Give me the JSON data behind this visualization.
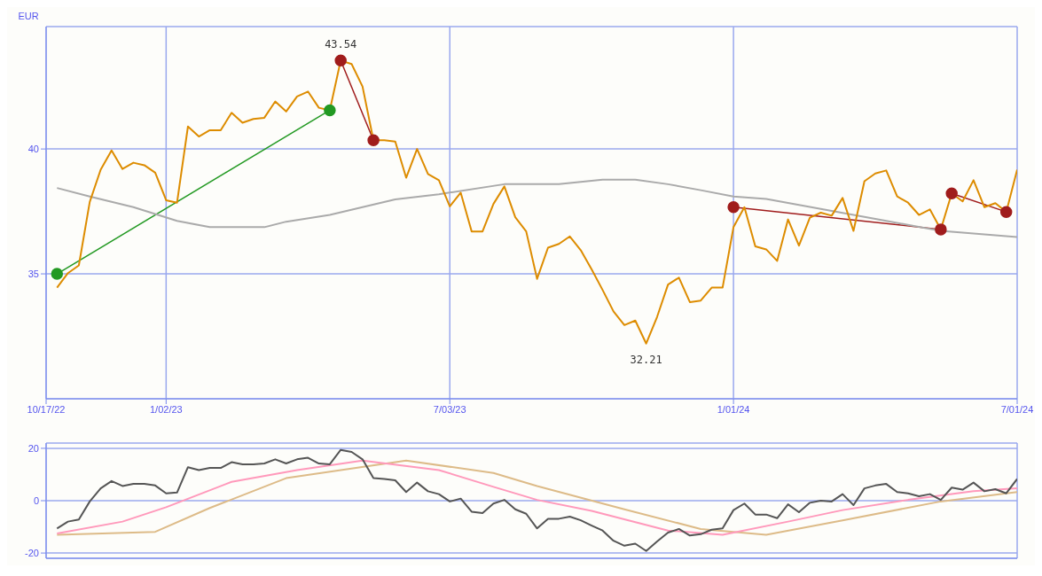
{
  "chart_data": [
    {
      "type": "line",
      "ylabel": "EUR",
      "x": [
        "2022-10-24",
        "2022-10-31",
        "2022-11-07",
        "2022-11-14",
        "2022-11-21",
        "2022-11-28",
        "2022-12-05",
        "2022-12-12",
        "2022-12-19",
        "2022-12-26",
        "2023-01-02",
        "2023-01-09",
        "2023-01-16",
        "2023-01-23",
        "2023-01-30",
        "2023-02-06",
        "2023-02-13",
        "2023-02-20",
        "2023-02-27",
        "2023-03-06",
        "2023-03-13",
        "2023-03-20",
        "2023-03-27",
        "2023-04-03",
        "2023-04-10",
        "2023-04-17",
        "2023-04-24",
        "2023-05-01",
        "2023-05-08",
        "2023-05-15",
        "2023-05-22",
        "2023-05-29",
        "2023-06-05",
        "2023-06-12",
        "2023-06-19",
        "2023-06-26",
        "2023-07-03",
        "2023-07-10",
        "2023-07-17",
        "2023-07-24",
        "2023-07-31",
        "2023-08-07",
        "2023-08-14",
        "2023-08-21",
        "2023-08-28",
        "2023-09-04",
        "2023-09-11",
        "2023-09-18",
        "2023-09-25",
        "2023-10-02",
        "2023-10-09",
        "2023-10-16",
        "2023-10-23",
        "2023-10-30",
        "2023-11-06",
        "2023-11-13",
        "2023-11-20",
        "2023-11-27",
        "2023-12-04",
        "2023-12-11",
        "2023-12-18",
        "2023-12-25",
        "2024-01-01",
        "2024-01-08",
        "2024-01-15",
        "2024-01-22",
        "2024-01-29",
        "2024-02-05",
        "2024-02-12",
        "2024-02-19",
        "2024-02-26",
        "2024-03-04",
        "2024-03-11",
        "2024-03-18",
        "2024-03-25",
        "2024-04-01",
        "2024-04-08",
        "2024-04-15",
        "2024-04-22",
        "2024-04-29",
        "2024-05-06",
        "2024-05-13",
        "2024-05-20",
        "2024-05-27",
        "2024-06-03",
        "2024-06-10",
        "2024-06-17",
        "2024-06-24",
        "2024-07-01"
      ],
      "series": [
        {
          "color": "#dd8c00",
          "values": [
            34.45,
            35.03,
            35.34,
            37.88,
            39.17,
            39.94,
            39.2,
            39.45,
            39.35,
            39.05,
            37.95,
            37.85,
            40.9,
            40.5,
            40.75,
            40.75,
            41.45,
            41.05,
            41.2,
            41.25,
            41.9,
            41.5,
            42.1,
            42.3,
            41.65,
            41.55,
            43.54,
            43.4,
            42.5,
            40.35,
            40.35,
            40.3,
            38.85,
            40.0,
            39.0,
            38.75,
            37.7,
            38.25,
            36.7,
            36.7,
            37.8,
            38.5,
            37.27,
            36.7,
            34.8,
            36.05,
            36.2,
            36.5,
            35.95,
            35.18,
            34.36,
            33.5,
            32.95,
            33.13,
            32.21,
            33.28,
            34.57,
            34.85,
            33.87,
            33.93,
            34.45,
            34.45,
            36.87,
            37.67,
            36.1,
            35.98,
            35.52,
            37.18,
            36.13,
            37.25,
            37.45,
            37.33,
            38.04,
            36.72,
            38.71,
            39.02,
            39.14,
            38.1,
            37.85,
            37.36,
            37.58,
            36.78,
            38.22,
            37.9,
            38.75,
            37.67,
            37.83,
            37.48,
            39.17
          ]
        },
        {
          "color": "#aaaaaa",
          "x": [
            "2022-10-24",
            "2022-11-14",
            "2022-12-12",
            "2023-01-09",
            "2023-01-30",
            "2023-03-06",
            "2023-03-20",
            "2023-04-17",
            "2023-05-29",
            "2023-06-26",
            "2023-08-07",
            "2023-09-11",
            "2023-10-09",
            "2023-10-30",
            "2023-11-20",
            "2023-12-11",
            "2024-01-01",
            "2024-01-22",
            "2024-03-04",
            "2024-04-08",
            "2024-05-13",
            "2024-07-01"
          ],
          "values": [
            38.44,
            38.1,
            37.67,
            37.12,
            36.87,
            36.87,
            37.09,
            37.36,
            37.98,
            38.19,
            38.59,
            38.59,
            38.77,
            38.77,
            38.59,
            38.35,
            38.1,
            38.0,
            37.52,
            37.12,
            36.72,
            36.47
          ]
        },
        {
          "color": "#229922",
          "marker": "circle",
          "x": [
            "2022-10-24",
            "2023-04-17"
          ],
          "values": [
            35.0,
            41.55
          ]
        },
        {
          "color": "#a01c1c",
          "marker": "circle",
          "x": [
            "2023-04-24",
            "2023-05-15"
          ],
          "values": [
            43.54,
            40.35
          ]
        },
        {
          "color": "#a01c1c",
          "marker": "circle",
          "x": [
            "2024-01-01",
            "2024-05-13"
          ],
          "values": [
            37.67,
            36.78
          ]
        },
        {
          "color": "#a01c1c",
          "marker": "circle",
          "x": [
            "2024-05-20",
            "2024-06-24"
          ],
          "values": [
            38.22,
            37.48
          ]
        }
      ],
      "xlim": [
        "2022-10-17",
        "2024-07-01"
      ],
      "xticks": [
        {
          "value": "2022-10-17",
          "label": "10/17/22"
        },
        {
          "value": "2023-01-02",
          "label": "1/02/23"
        },
        {
          "value": "2023-07-03",
          "label": "7/03/23"
        },
        {
          "value": "2024-01-01",
          "label": "1/01/24"
        },
        {
          "value": "2024-07-01",
          "label": "7/01/24"
        }
      ],
      "ylim": [
        30,
        44.9
      ],
      "yticks": [
        35,
        40
      ],
      "grid": true,
      "annotations": [
        {
          "text": "43.54",
          "x": "2023-04-24",
          "y": 43.54
        },
        {
          "text": "32.21",
          "x": "2023-11-06",
          "y": 32.21
        }
      ]
    },
    {
      "type": "line",
      "tick_labels": "y",
      "x": [
        "2022-10-24",
        "2022-10-31",
        "2022-11-07",
        "2022-11-14",
        "2022-11-21",
        "2022-11-28",
        "2022-12-05",
        "2022-12-12",
        "2022-12-19",
        "2022-12-26",
        "2023-01-02",
        "2023-01-09",
        "2023-01-16",
        "2023-01-23",
        "2023-01-30",
        "2023-02-06",
        "2023-02-13",
        "2023-02-20",
        "2023-02-27",
        "2023-03-06",
        "2023-03-13",
        "2023-03-20",
        "2023-03-27",
        "2023-04-03",
        "2023-04-10",
        "2023-04-17",
        "2023-04-24",
        "2023-05-01",
        "2023-05-08",
        "2023-05-15",
        "2023-05-22",
        "2023-05-29",
        "2023-06-05",
        "2023-06-12",
        "2023-06-19",
        "2023-06-26",
        "2023-07-03",
        "2023-07-10",
        "2023-07-17",
        "2023-07-24",
        "2023-07-31",
        "2023-08-07",
        "2023-08-14",
        "2023-08-21",
        "2023-08-28",
        "2023-09-04",
        "2023-09-11",
        "2023-09-18",
        "2023-09-25",
        "2023-10-02",
        "2023-10-09",
        "2023-10-16",
        "2023-10-23",
        "2023-10-30",
        "2023-11-06",
        "2023-11-13",
        "2023-11-20",
        "2023-11-27",
        "2023-12-04",
        "2023-12-11",
        "2023-12-18",
        "2023-12-25",
        "2024-01-01",
        "2024-01-08",
        "2024-01-15",
        "2024-01-22",
        "2024-01-29",
        "2024-02-05",
        "2024-02-12",
        "2024-02-19",
        "2024-02-26",
        "2024-03-04",
        "2024-03-11",
        "2024-03-18",
        "2024-03-25",
        "2024-04-01",
        "2024-04-08",
        "2024-04-15",
        "2024-04-22",
        "2024-04-29",
        "2024-05-06",
        "2024-05-13",
        "2024-05-20",
        "2024-05-27",
        "2024-06-03",
        "2024-06-10",
        "2024-06-17",
        "2024-06-24",
        "2024-07-01"
      ],
      "series": [
        {
          "color": "#555555",
          "values": [
            -10.6,
            -8,
            -7.2,
            -0.3,
            4.7,
            7.5,
            5.6,
            6.4,
            6.4,
            5.8,
            2.8,
            3.1,
            12.8,
            11.7,
            12.5,
            12.5,
            14.7,
            13.9,
            13.9,
            14.2,
            15.8,
            14.2,
            15.8,
            16.4,
            14.2,
            13.9,
            19.4,
            18.6,
            15.8,
            8.6,
            8.3,
            7.8,
            3.3,
            6.9,
            3.6,
            2.5,
            -0.3,
            0.8,
            -4.2,
            -4.7,
            -1.1,
            0.3,
            -3.3,
            -5,
            -10.6,
            -6.9,
            -6.9,
            -6.1,
            -7.5,
            -9.5,
            -11.4,
            -15.3,
            -17.2,
            -16.4,
            -19.2,
            -15.6,
            -12.2,
            -10.8,
            -13.3,
            -12.8,
            -11.1,
            -10.6,
            -3.6,
            -1.1,
            -5.3,
            -5.3,
            -6.7,
            -1.4,
            -4.4,
            -0.8,
            0,
            -0.3,
            2.5,
            -1.7,
            4.7,
            5.8,
            6.4,
            3.3,
            2.8,
            1.7,
            2.5,
            0.3,
            5,
            4.2,
            6.9,
            3.6,
            4.4,
            2.8,
            8.3
          ]
        },
        {
          "color": "#ff99bb",
          "x": [
            "2022-10-24",
            "2022-12-05",
            "2023-01-02",
            "2023-02-13",
            "2023-03-27",
            "2023-05-08",
            "2023-06-26",
            "2023-07-31",
            "2023-08-28",
            "2023-10-02",
            "2023-11-20",
            "2023-12-25",
            "2024-02-05",
            "2024-03-11",
            "2024-04-22",
            "2024-06-03",
            "2024-07-01"
          ],
          "values": [
            -12.5,
            -8,
            -2.5,
            7.2,
            11.7,
            15.3,
            11.7,
            5.3,
            0.3,
            -3.9,
            -11.4,
            -13,
            -8,
            -3.6,
            0.3,
            3.6,
            4.7
          ]
        },
        {
          "color": "#ddbb88",
          "x": [
            "2022-10-24",
            "2022-12-26",
            "2023-01-30",
            "2023-03-20",
            "2023-06-05",
            "2023-07-31",
            "2023-08-28",
            "2023-10-23",
            "2023-12-11",
            "2024-01-22",
            "2024-03-11",
            "2024-05-13",
            "2024-07-01"
          ],
          "values": [
            -13,
            -11.9,
            -2.8,
            8.6,
            15.3,
            10.6,
            5.6,
            -3.3,
            -10.8,
            -13,
            -7.5,
            -0.3,
            3.3
          ]
        }
      ],
      "xlim": [
        "2022-10-17",
        "2024-07-01"
      ],
      "xticks": [
        {
          "value": "2023-01-02",
          "label": null
        },
        {
          "value": "2023-07-03",
          "label": null
        },
        {
          "value": "2024-01-01",
          "label": null
        }
      ],
      "ylim": [
        -22,
        22
      ],
      "yticks": [
        -20,
        0,
        20
      ],
      "grid": true
    }
  ]
}
